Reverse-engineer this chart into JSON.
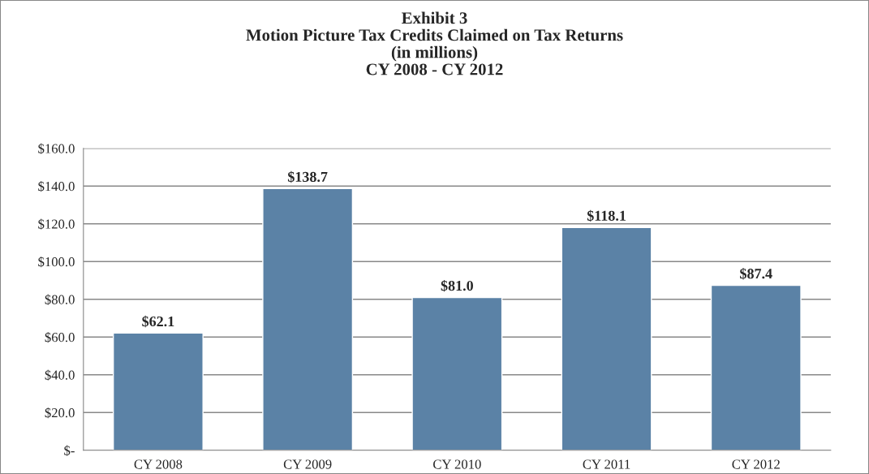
{
  "chart_data": {
    "type": "bar",
    "title": "Exhibit 3\nMotion Picture Tax Credits Claimed on Tax Returns\n(in millions)\nCY 2008 - CY 2012",
    "categories": [
      "CY 2008",
      "CY 2009",
      "CY 2010",
      "CY 2011",
      "CY 2012"
    ],
    "values": [
      62.1,
      138.7,
      81.0,
      118.1,
      87.4
    ],
    "value_labels": [
      "$62.1",
      "$138.7",
      "$81.0",
      "$118.1",
      "$87.4"
    ],
    "color": "#5b82a6",
    "ylim": [
      0,
      160
    ],
    "yticks": [
      {
        "value": 0,
        "label": "$-"
      },
      {
        "value": 20,
        "label": "$20.0"
      },
      {
        "value": 40,
        "label": "$40.0"
      },
      {
        "value": 60,
        "label": "$60.0"
      },
      {
        "value": 80,
        "label": "$80.0"
      },
      {
        "value": 100,
        "label": "$100.0"
      },
      {
        "value": 120,
        "label": "$120.0"
      },
      {
        "value": 140,
        "label": "$140.0"
      },
      {
        "value": 160,
        "label": "$160.0"
      }
    ],
    "grid": "y",
    "legend": false
  }
}
